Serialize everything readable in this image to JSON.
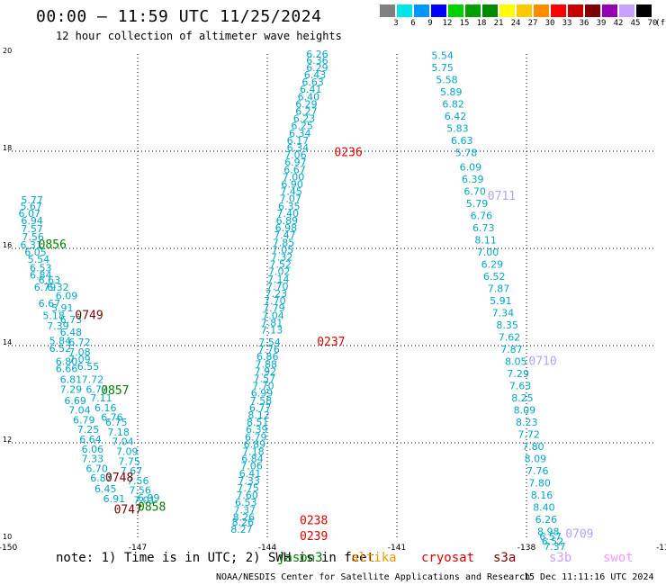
{
  "header": {
    "title": "00:00 – 11:59 UTC 11/25/2024",
    "subtitle": "12 hour collection of altimeter wave heights"
  },
  "colorbar": {
    "labels": [
      "3",
      "6",
      "9",
      "12",
      "15",
      "18",
      "21",
      "24",
      "27",
      "30",
      "33",
      "36",
      "39",
      "42",
      "45",
      "70"
    ],
    "unit": "(ft)",
    "colors": [
      "#808080",
      "#00e5e5",
      "#0096ff",
      "#0000ff",
      "#00d200",
      "#00a000",
      "#008c00",
      "#ffff00",
      "#ffc800",
      "#ff8c00",
      "#ff0000",
      "#c80000",
      "#800000",
      "#9600b4",
      "#c8a0ff",
      "#000000"
    ]
  },
  "chart_data": {
    "type": "scatter",
    "xlim": [
      -150,
      -135
    ],
    "ylim": [
      10,
      20
    ],
    "xticks": [
      "-150",
      "-147",
      "-144",
      "-141",
      "-138",
      "-13"
    ],
    "yticks": [
      "20",
      "18",
      "16",
      "14",
      "12",
      "10"
    ],
    "grid": true,
    "tracks": [
      {
        "satellite": "jason3",
        "color": "#00a8c8",
        "values": [
          [
            -149.7,
            16.93,
            "5.77"
          ],
          [
            -149.72,
            16.8,
            "5.67"
          ],
          [
            -149.76,
            16.65,
            "6.07"
          ],
          [
            -149.7,
            16.5,
            "6.94"
          ],
          [
            -149.7,
            16.33,
            "7.57"
          ],
          [
            -149.68,
            16.17,
            "7.56"
          ],
          [
            -149.72,
            16.0,
            "6.31"
          ],
          [
            -149.62,
            15.85,
            "6.05"
          ],
          [
            -149.55,
            15.7,
            "5.54"
          ],
          [
            -149.5,
            15.53,
            "6.53"
          ],
          [
            -149.5,
            15.38,
            "6.84"
          ],
          [
            -149.3,
            15.28,
            "6.63"
          ],
          [
            -149.4,
            15.13,
            "6.79"
          ],
          [
            -149.1,
            15.13,
            "6.32"
          ],
          [
            -148.9,
            14.95,
            "6.09"
          ],
          [
            -149.3,
            14.8,
            "6.67"
          ],
          [
            -149.0,
            14.7,
            "5.91"
          ],
          [
            -149.2,
            14.55,
            "5.18"
          ],
          [
            -148.8,
            14.46,
            "6.73"
          ],
          [
            -149.1,
            14.33,
            "7.39"
          ],
          [
            -148.8,
            14.2,
            "6.48"
          ],
          [
            -149.05,
            14.03,
            "5.84"
          ],
          [
            -148.6,
            14.0,
            "6.72"
          ],
          [
            -149.05,
            13.87,
            "6.52"
          ],
          [
            -148.6,
            13.8,
            "7.08"
          ],
          [
            -148.9,
            13.6,
            "6.80"
          ],
          [
            -148.6,
            13.65,
            "7.09"
          ],
          [
            -148.9,
            13.45,
            "6.66"
          ],
          [
            -148.4,
            13.5,
            "6.55"
          ],
          [
            -148.8,
            13.23,
            "6.81"
          ],
          [
            -148.3,
            13.23,
            "7.72"
          ],
          [
            -148.8,
            13.03,
            "7.29"
          ],
          [
            -148.2,
            13.03,
            "6.77"
          ],
          [
            -148.7,
            12.8,
            "6.69"
          ],
          [
            -148.1,
            12.85,
            "7.11"
          ],
          [
            -148.6,
            12.6,
            "7.04"
          ],
          [
            -148.0,
            12.65,
            "6.16"
          ],
          [
            -148.5,
            12.4,
            "6.79"
          ],
          [
            -147.85,
            12.45,
            "6.76"
          ],
          [
            -148.4,
            12.2,
            "7.25"
          ],
          [
            -147.75,
            12.35,
            "6.75"
          ],
          [
            -148.35,
            12.0,
            "6.64"
          ],
          [
            -147.7,
            12.15,
            "7.18"
          ],
          [
            -148.3,
            11.8,
            "6.06"
          ],
          [
            -147.6,
            11.95,
            "7.04"
          ],
          [
            -148.3,
            11.6,
            "7.33"
          ],
          [
            -147.5,
            11.75,
            "7.09"
          ],
          [
            -148.2,
            11.4,
            "6.70"
          ],
          [
            -147.45,
            11.55,
            "7.75"
          ],
          [
            -148.1,
            11.2,
            "6.87"
          ],
          [
            -147.4,
            11.35,
            "7.67"
          ],
          [
            -148.0,
            10.98,
            "6.45"
          ],
          [
            -147.25,
            11.15,
            "7.56"
          ],
          [
            -147.8,
            10.78,
            "6.91"
          ],
          [
            -147.2,
            10.95,
            "7.56"
          ],
          [
            -147.1,
            10.75,
            "7.01"
          ],
          [
            -147.0,
            10.8,
            "6.99"
          ]
        ]
      },
      {
        "satellite": "jason3",
        "color": "#00a8c8",
        "values": [
          [
            -143.1,
            19.93,
            "6.26"
          ],
          [
            -143.1,
            19.8,
            "6.36"
          ],
          [
            -143.1,
            19.65,
            "6.29"
          ],
          [
            -143.15,
            19.5,
            "6.43"
          ],
          [
            -143.2,
            19.35,
            "6.63"
          ],
          [
            -143.25,
            19.2,
            "6.41"
          ],
          [
            -143.3,
            19.05,
            "6.40"
          ],
          [
            -143.35,
            18.9,
            "6.29"
          ],
          [
            -143.35,
            18.75,
            "6.27"
          ],
          [
            -143.4,
            18.6,
            "6.23"
          ],
          [
            -143.45,
            18.45,
            "6.25"
          ],
          [
            -143.5,
            18.3,
            "6.34"
          ],
          [
            -143.55,
            18.15,
            "6.17"
          ],
          [
            -143.55,
            18.0,
            "6.34"
          ],
          [
            -143.6,
            17.85,
            "7.06"
          ],
          [
            -143.6,
            17.7,
            "6.97"
          ],
          [
            -143.62,
            17.55,
            "6.67"
          ],
          [
            -143.65,
            17.4,
            "7.00"
          ],
          [
            -143.68,
            17.25,
            "6.90"
          ],
          [
            -143.7,
            17.1,
            "7.45"
          ],
          [
            -143.72,
            16.95,
            "7.07"
          ],
          [
            -143.75,
            16.8,
            "6.35"
          ],
          [
            -143.78,
            16.65,
            "7.40"
          ],
          [
            -143.8,
            16.5,
            "6.89"
          ],
          [
            -143.82,
            16.35,
            "6.98"
          ],
          [
            -143.85,
            16.2,
            "7.47"
          ],
          [
            -143.88,
            16.05,
            "7.85"
          ],
          [
            -143.9,
            15.9,
            "7.05"
          ],
          [
            -143.92,
            15.75,
            "7.32"
          ],
          [
            -143.95,
            15.6,
            "7.52"
          ],
          [
            -143.98,
            15.45,
            "7.02"
          ],
          [
            -144.0,
            15.3,
            "7.14"
          ],
          [
            -144.02,
            15.15,
            "7.70"
          ],
          [
            -144.05,
            15.0,
            "7.23"
          ],
          [
            -144.08,
            14.85,
            "7.70"
          ],
          [
            -144.1,
            14.7,
            "7.79"
          ],
          [
            -144.12,
            14.55,
            "7.04"
          ],
          [
            -144.15,
            14.4,
            "7.81"
          ],
          [
            -144.15,
            14.25,
            "7.13"
          ],
          [
            -144.2,
            14.0,
            "7.54"
          ],
          [
            -144.22,
            13.85,
            "7.76"
          ],
          [
            -144.25,
            13.7,
            "6.86"
          ],
          [
            -144.28,
            13.55,
            "7.88"
          ],
          [
            -144.3,
            13.4,
            "7.92"
          ],
          [
            -144.32,
            13.25,
            "7.57"
          ],
          [
            -144.35,
            13.1,
            "7.70"
          ],
          [
            -144.38,
            12.95,
            "6.99"
          ],
          [
            -144.4,
            12.8,
            "7.58"
          ],
          [
            -144.42,
            12.65,
            "6.77"
          ],
          [
            -144.45,
            12.5,
            "8.12"
          ],
          [
            -144.48,
            12.35,
            "8.51"
          ],
          [
            -144.5,
            12.2,
            "6.39"
          ],
          [
            -144.52,
            12.05,
            "6.79"
          ],
          [
            -144.55,
            11.9,
            "6.89"
          ],
          [
            -144.58,
            11.75,
            "7.18"
          ],
          [
            -144.6,
            11.6,
            "6.84"
          ],
          [
            -144.62,
            11.45,
            "7.06"
          ],
          [
            -144.65,
            11.3,
            "6.41"
          ],
          [
            -144.68,
            11.15,
            "7.33"
          ],
          [
            -144.7,
            11.0,
            "7.75"
          ],
          [
            -144.72,
            10.85,
            "7.60"
          ],
          [
            -144.75,
            10.7,
            "6.53"
          ],
          [
            -144.78,
            10.55,
            "7.37"
          ],
          [
            -144.8,
            10.4,
            "8.26"
          ],
          [
            -144.82,
            10.3,
            "8.26"
          ],
          [
            -144.85,
            10.15,
            "8.27"
          ]
        ]
      },
      {
        "satellite": "jason3",
        "color": "#00a8c8",
        "values": [
          [
            -140.2,
            19.9,
            "5.54"
          ],
          [
            -140.2,
            19.65,
            "5.75"
          ],
          [
            -140.1,
            19.4,
            "5.58"
          ],
          [
            -140.0,
            19.15,
            "5.89"
          ],
          [
            -139.95,
            18.9,
            "6.82"
          ],
          [
            -139.9,
            18.65,
            "6.42"
          ],
          [
            -139.85,
            18.4,
            "5.83"
          ],
          [
            -139.75,
            18.15,
            "6.63"
          ],
          [
            -139.65,
            17.9,
            "5.78"
          ],
          [
            -139.55,
            17.6,
            "6.09"
          ],
          [
            -139.5,
            17.35,
            "6.39"
          ],
          [
            -139.45,
            17.1,
            "6.70"
          ],
          [
            -139.4,
            16.85,
            "5.79"
          ],
          [
            -139.3,
            16.6,
            "6.76"
          ],
          [
            -139.25,
            16.35,
            "6.73"
          ],
          [
            -139.2,
            16.1,
            "8.11"
          ],
          [
            -139.15,
            15.85,
            "7.00"
          ],
          [
            -139.05,
            15.6,
            "6.29"
          ],
          [
            -139.0,
            15.35,
            "6.52"
          ],
          [
            -138.9,
            15.1,
            "7.87"
          ],
          [
            -138.85,
            14.85,
            "5.91"
          ],
          [
            -138.8,
            14.6,
            "7.34"
          ],
          [
            -138.7,
            14.35,
            "8.35"
          ],
          [
            -138.65,
            14.1,
            "7.62"
          ],
          [
            -138.6,
            13.85,
            "7.87"
          ],
          [
            -138.5,
            13.6,
            "8.05"
          ],
          [
            -138.45,
            13.35,
            "7.29"
          ],
          [
            -138.4,
            13.1,
            "7.63"
          ],
          [
            -138.35,
            12.85,
            "8.25"
          ],
          [
            -138.3,
            12.6,
            "8.09"
          ],
          [
            -138.25,
            12.35,
            "8.23"
          ],
          [
            -138.2,
            12.1,
            "7.72"
          ],
          [
            -138.1,
            11.85,
            "7.80"
          ],
          [
            -138.05,
            11.6,
            "8.09"
          ],
          [
            -138.0,
            11.35,
            "7.76"
          ],
          [
            -137.95,
            11.1,
            "7.80"
          ],
          [
            -137.9,
            10.85,
            "8.16"
          ],
          [
            -137.85,
            10.6,
            "8.40"
          ],
          [
            -137.8,
            10.35,
            "6.26"
          ],
          [
            -137.75,
            10.1,
            "8.98"
          ],
          [
            -137.7,
            10.0,
            "6.57"
          ],
          [
            -137.65,
            9.9,
            "6.52"
          ],
          [
            -137.6,
            9.8,
            "7.37"
          ]
        ]
      }
    ],
    "time_labels": [
      {
        "x": -149.3,
        "y": 16.0,
        "label": "0856",
        "color": "#008000"
      },
      {
        "x": -148.45,
        "y": 14.55,
        "label": "0749",
        "color": "#800000"
      },
      {
        "x": -147.85,
        "y": 13.0,
        "label": "0857",
        "color": "#008000"
      },
      {
        "x": -147.75,
        "y": 11.2,
        "label": "0748",
        "color": "#800000"
      },
      {
        "x": -147.55,
        "y": 10.55,
        "label": "0747",
        "color": "#800000"
      },
      {
        "x": -147.0,
        "y": 10.6,
        "label": "0858",
        "color": "#008000"
      },
      {
        "x": -142.45,
        "y": 17.9,
        "label": "0236",
        "color": "#e00000"
      },
      {
        "x": -142.85,
        "y": 14.0,
        "label": "0237",
        "color": "#e00000"
      },
      {
        "x": -143.25,
        "y": 10.32,
        "label": "0238",
        "color": "#e00000"
      },
      {
        "x": -143.25,
        "y": 10.0,
        "label": "0239",
        "color": "#e00000"
      },
      {
        "x": -138.9,
        "y": 17.0,
        "label": "0711",
        "color": "#b4a0ff"
      },
      {
        "x": -137.95,
        "y": 13.6,
        "label": "0710",
        "color": "#b4a0ff"
      },
      {
        "x": -137.1,
        "y": 10.05,
        "label": "0709",
        "color": "#b4a0ff"
      }
    ]
  },
  "footer": {
    "note": "note: 1) Time is in UTC; 2) SWH is in feet",
    "satellites": [
      {
        "name": "jason3",
        "color": "#008000"
      },
      {
        "name": "altika",
        "color": "#ff9600"
      },
      {
        "name": "cryosat",
        "color": "#e00000"
      },
      {
        "name": "s3a",
        "color": "#800000"
      },
      {
        "name": "s3b",
        "color": "#c8a0ff"
      },
      {
        "name": "swot",
        "color": "#ff96ff"
      }
    ],
    "credit": "NOAA/NESDIS Center for Satellite Applications and Research",
    "timestamp": "15 Dec 11:11:16 UTC 2024"
  }
}
